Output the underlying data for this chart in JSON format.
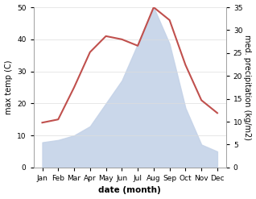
{
  "months": [
    "Jan",
    "Feb",
    "Mar",
    "Apr",
    "May",
    "Jun",
    "Jul",
    "Aug",
    "Sep",
    "Oct",
    "Nov",
    "Dec"
  ],
  "temperature": [
    14,
    15,
    25,
    36,
    41,
    40,
    38,
    50,
    46,
    32,
    21,
    17
  ],
  "precipitation": [
    5.5,
    6,
    7,
    9,
    14,
    19,
    27,
    35,
    27,
    13,
    5,
    3.5
  ],
  "temp_color": "#c0504d",
  "precip_fill_color": "#c5d3e8",
  "ylabel_left": "max temp (C)",
  "ylabel_right": "med. precipitation (kg/m2)",
  "xlabel": "date (month)",
  "ylim_left": [
    0,
    50
  ],
  "ylim_right": [
    0,
    35
  ],
  "yticks_left": [
    0,
    10,
    20,
    30,
    40,
    50
  ],
  "yticks_right": [
    0,
    5,
    10,
    15,
    20,
    25,
    30,
    35
  ],
  "bg_color": "#ffffff",
  "grid_color": "#dddddd"
}
